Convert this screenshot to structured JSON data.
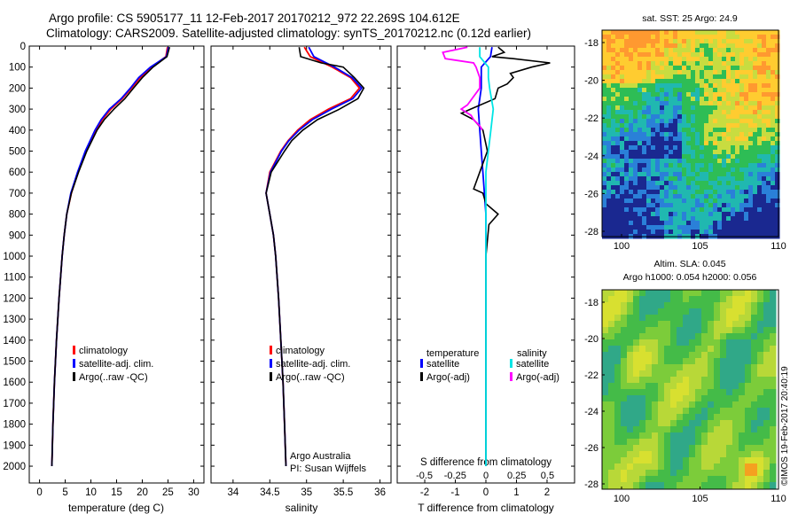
{
  "header": {
    "line1": "Argo profile: CS 5905177_11  12-Feb-2017  20170212_972  22.269S  104.612E",
    "line2": "Climatology: CARS2009.  Satellite-adjusted climatology: synTS_20170212.nc  (0.12d earlier)"
  },
  "colors": {
    "climatology": "#ff0000",
    "satellite_adj": "#0000ff",
    "argo": "#000000",
    "sat_salinity": "#00e5e5",
    "argo_salinity_adj": "#ff00ff"
  },
  "chart_data": [
    {
      "type": "line",
      "id": "temperature",
      "xlabel": "temperature (deg C)",
      "xlim": [
        -2,
        32
      ],
      "xticks": [
        0,
        5,
        10,
        15,
        20,
        25,
        30
      ],
      "ylim": [
        2080,
        0
      ],
      "yticks": [
        0,
        100,
        200,
        300,
        400,
        500,
        600,
        700,
        800,
        900,
        1000,
        1100,
        1200,
        1300,
        1400,
        1500,
        1600,
        1700,
        1800,
        1900,
        2000
      ],
      "legend": [
        "climatology",
        "satellite-adj. clim.",
        "Argo(..raw -QC)"
      ],
      "series": [
        {
          "name": "climatology",
          "color": "#ff0000",
          "depth": [
            5,
            50,
            100,
            150,
            200,
            250,
            300,
            350,
            400,
            500,
            600,
            700,
            800,
            900,
            1000,
            1200,
            1400,
            1600,
            1800,
            2000
          ],
          "values": [
            24.9,
            24.6,
            21.8,
            19.6,
            17.9,
            16.1,
            13.9,
            12.2,
            11.0,
            9.0,
            7.5,
            6.2,
            5.3,
            4.8,
            4.4,
            3.8,
            3.3,
            2.9,
            2.6,
            2.4
          ]
        },
        {
          "name": "satellite-adj. clim.",
          "color": "#0000ff",
          "depth": [
            5,
            50,
            100,
            150,
            200,
            250,
            300,
            350,
            400,
            500,
            600,
            700,
            800,
            900,
            1000,
            1200,
            1400,
            1600,
            1800,
            2000
          ],
          "values": [
            25.1,
            24.7,
            21.6,
            19.3,
            17.7,
            15.9,
            13.6,
            12.0,
            10.8,
            8.9,
            7.4,
            6.1,
            5.3,
            4.8,
            4.4,
            3.8,
            3.3,
            2.9,
            2.6,
            2.4
          ]
        },
        {
          "name": "Argo(..raw -QC)",
          "color": "#000000",
          "depth": [
            5,
            50,
            100,
            150,
            200,
            250,
            300,
            350,
            400,
            500,
            600,
            700,
            800,
            900,
            1000,
            1200,
            1400,
            1600,
            1800,
            2000
          ],
          "values": [
            25.3,
            24.8,
            22.1,
            20.0,
            18.3,
            16.6,
            14.5,
            12.6,
            11.2,
            9.2,
            7.6,
            6.2,
            5.3,
            4.8,
            4.4,
            3.8,
            3.3,
            2.9,
            2.6,
            2.4
          ]
        }
      ]
    },
    {
      "type": "line",
      "id": "salinity",
      "xlabel": "salinity",
      "xlim": [
        33.7,
        36.15
      ],
      "xticks": [
        34,
        34.5,
        35,
        35.5,
        36
      ],
      "ylim": [
        2080,
        0
      ],
      "legend": [
        "climatology",
        "satellite-adj. clim.",
        "Argo(..raw -QC)"
      ],
      "notes": [
        "Argo Australia",
        "PI: Susan Wijffels"
      ],
      "series": [
        {
          "name": "climatology",
          "color": "#ff0000",
          "depth": [
            5,
            50,
            100,
            150,
            200,
            250,
            300,
            350,
            400,
            450,
            500,
            600,
            700,
            800,
            900,
            1000,
            1200,
            1400,
            1600,
            1800,
            2000
          ],
          "values": [
            34.97,
            35.05,
            35.35,
            35.6,
            35.72,
            35.6,
            35.3,
            35.05,
            34.88,
            34.75,
            34.65,
            34.5,
            34.45,
            34.5,
            34.55,
            34.58,
            34.62,
            34.65,
            34.68,
            34.7,
            34.72
          ]
        },
        {
          "name": "satellite-adj. clim.",
          "color": "#0000ff",
          "depth": [
            5,
            50,
            100,
            150,
            200,
            250,
            300,
            350,
            400,
            450,
            500,
            600,
            700,
            800,
            900,
            1000,
            1200,
            1400,
            1600,
            1800,
            2000
          ],
          "values": [
            35.03,
            35.1,
            35.38,
            35.62,
            35.75,
            35.63,
            35.34,
            35.08,
            34.9,
            34.76,
            34.66,
            34.51,
            34.45,
            34.5,
            34.55,
            34.58,
            34.62,
            34.65,
            34.68,
            34.7,
            34.72
          ]
        },
        {
          "name": "Argo(..raw -QC)",
          "color": "#000000",
          "depth": [
            5,
            50,
            80,
            100,
            150,
            200,
            250,
            300,
            350,
            400,
            450,
            500,
            600,
            700,
            800,
            900,
            1000,
            1200,
            1400,
            1600,
            1800,
            2000
          ],
          "values": [
            34.9,
            34.92,
            35.2,
            35.5,
            35.65,
            35.78,
            35.7,
            35.45,
            35.15,
            34.95,
            34.8,
            34.7,
            34.52,
            34.45,
            34.5,
            34.55,
            34.58,
            34.62,
            34.65,
            34.68,
            34.7,
            34.72
          ]
        }
      ]
    },
    {
      "type": "line",
      "id": "difference",
      "xlabel": "T difference from climatology",
      "xlabel2": "S difference from climatology",
      "xlim": [
        -2.9,
        2.9
      ],
      "xticks": [
        -2,
        -1,
        0,
        1,
        2
      ],
      "xticks2": [
        -0.5,
        -0.25,
        0,
        0.25,
        0.5
      ],
      "ylim": [
        2080,
        0
      ],
      "legend_titles": [
        "temperature",
        "salinity"
      ],
      "legend": [
        "satellite",
        "Argo(-adj)",
        "satellite",
        "Argo(-adj)"
      ],
      "series": [
        {
          "name": "satellite",
          "group": "temperature",
          "color": "#0000ff",
          "depth": [
            5,
            50,
            100,
            200,
            300,
            400,
            500,
            600,
            700,
            800,
            1000,
            1500,
            2000
          ],
          "values": [
            0.2,
            0.15,
            -0.15,
            -0.15,
            -0.25,
            -0.2,
            -0.15,
            -0.1,
            -0.05,
            0.0,
            0.0,
            0.0,
            0.0
          ]
        },
        {
          "name": "Argo(-adj)",
          "group": "temperature",
          "color": "#000000",
          "depth": [
            5,
            30,
            50,
            60,
            80,
            100,
            130,
            150,
            180,
            200,
            250,
            300,
            320,
            350,
            400,
            500,
            600,
            680,
            700,
            750,
            800,
            850,
            1000,
            1500,
            2000
          ],
          "values": [
            0.4,
            0.6,
            0.2,
            0.9,
            2.1,
            1.5,
            0.8,
            0.9,
            0.7,
            0.4,
            0.3,
            -0.5,
            -0.8,
            -0.4,
            -0.1,
            0.05,
            -0.2,
            -0.4,
            -0.1,
            0.0,
            0.4,
            0.1,
            0.0,
            0.0,
            0.0
          ]
        },
        {
          "name": "satellite",
          "group": "salinity",
          "color": "#00e5e5",
          "depth": [
            5,
            50,
            100,
            150,
            200,
            300,
            400,
            500,
            600,
            700,
            800,
            1000,
            1500,
            2000
          ],
          "values": [
            -0.05,
            -0.05,
            0.02,
            0.02,
            0.03,
            0.06,
            0.04,
            0.02,
            0.0,
            0.0,
            0.0,
            0.0,
            0.0,
            0.0
          ]
        },
        {
          "name": "Argo(-adj)",
          "group": "salinity",
          "color": "#ff00ff",
          "depth": [
            5,
            30,
            60,
            80,
            100,
            150,
            200,
            280,
            300,
            330,
            350,
            380,
            400
          ],
          "values": [
            -0.15,
            -0.35,
            -0.33,
            -0.1,
            -0.08,
            -0.05,
            -0.05,
            -0.15,
            -0.2,
            -0.12,
            -0.1,
            -0.05,
            -0.03
          ]
        }
      ]
    }
  ],
  "maps": {
    "sst": {
      "title": "sat. SST: 25  Argo: 24.9",
      "yticks": [
        "-18",
        "-20",
        "-22",
        "-24",
        "-26",
        "-28"
      ],
      "xticks": [
        "100",
        "105",
        "110"
      ]
    },
    "sla": {
      "title1": "Altim. SLA: 0.045",
      "title2": "Argo h1000: 0.054  h2000: 0.056",
      "yticks": [
        "-18",
        "-20",
        "-22",
        "-24",
        "-26",
        "-28"
      ],
      "xticks": [
        "100",
        "105",
        "110"
      ]
    }
  },
  "stamp": "©IMOS 19-Feb-2017 20:40:19"
}
